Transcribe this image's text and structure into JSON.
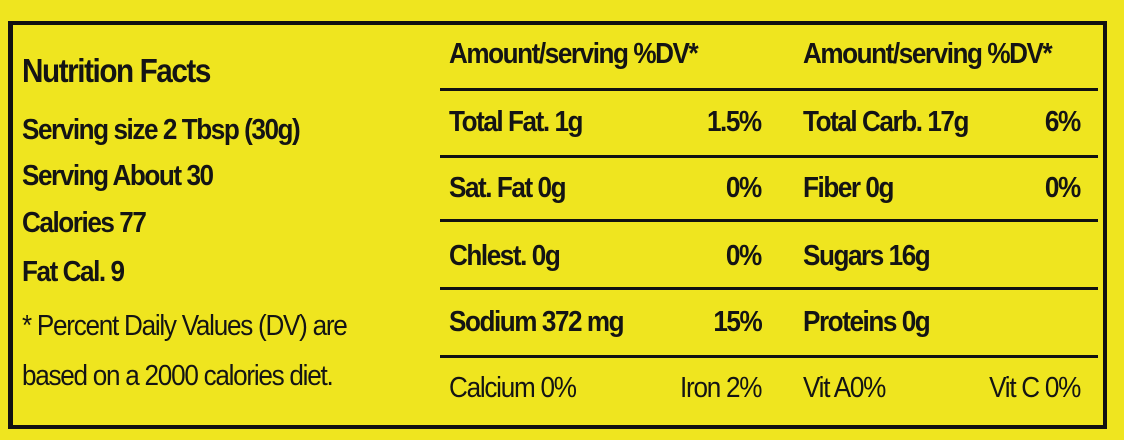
{
  "left": {
    "title": "Nutrition Facts",
    "serving_size": "Serving size 2 Tbsp (30g)",
    "servings": "Serving About 30",
    "calories": "Calories 77",
    "fat_calories": "Fat Cal. 9",
    "footnote_1": "* Percent Daily Values (DV) are",
    "footnote_2": "based on a 2000 calories diet."
  },
  "header": {
    "col1": "Amount/serving %DV*",
    "col2": "Amount/serving %DV*"
  },
  "rows": [
    {
      "a": "Total Fat. 1g",
      "a_dv": "1.5%",
      "b": "Total Carb. 17g",
      "b_dv": "6%"
    },
    {
      "a": "Sat. Fat 0g",
      "a_dv": "0%",
      "b": "Fiber 0g",
      "b_dv": "0%"
    },
    {
      "a": "Chlest. 0g",
      "a_dv": "0%",
      "b": "Sugars 16g",
      "b_dv": ""
    },
    {
      "a": "Sodium 372 mg",
      "a_dv": "15%",
      "b": "Proteins 0g",
      "b_dv": ""
    }
  ],
  "vitamins": {
    "calcium": "Calcium 0%",
    "iron": "Iron 2%",
    "vit_a": "Vit A0%",
    "vit_c": "Vit C 0%"
  },
  "colors": {
    "background": "#efe51f",
    "ink": "#141414"
  }
}
